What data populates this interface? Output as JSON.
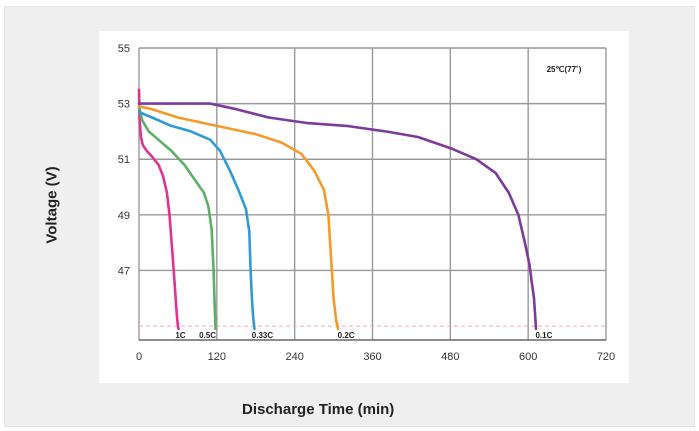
{
  "chart_data": {
    "type": "line",
    "title": "",
    "xlabel": "Discharge Time (min)",
    "ylabel": "Voltage (V)",
    "annotation": "25℃(77˚)",
    "xlim": [
      0,
      720
    ],
    "ylim": [
      44.5,
      55
    ],
    "x_ticks": [
      0,
      120,
      240,
      360,
      480,
      600,
      720
    ],
    "y_ticks": [
      47,
      49,
      51,
      53,
      55
    ],
    "grid": true,
    "cutoff_voltage": 45.0,
    "colors": {
      "grid": "#999999",
      "cutoff": "#f3a7b5",
      "1C": "#e0338f",
      "0.5C": "#5daf68",
      "0.33C": "#2f9ad6",
      "0.2C": "#f39a2a",
      "0.1C": "#7d3a99"
    },
    "series": [
      {
        "name": "1C",
        "x": [
          0,
          1,
          3,
          6,
          12,
          20,
          30,
          37,
          43,
          47,
          52,
          55,
          58,
          60,
          61
        ],
        "y": [
          53.5,
          52.4,
          51.8,
          51.5,
          51.3,
          51.1,
          50.8,
          50.4,
          49.8,
          49.0,
          47.5,
          46.5,
          45.5,
          45.0,
          44.9
        ]
      },
      {
        "name": "0.5C",
        "x": [
          0,
          5,
          15,
          30,
          50,
          70,
          85,
          100,
          107,
          112,
          115,
          117,
          118
        ],
        "y": [
          52.9,
          52.4,
          52.0,
          51.7,
          51.3,
          50.8,
          50.3,
          49.8,
          49.3,
          48.5,
          47.0,
          45.5,
          44.9
        ]
      },
      {
        "name": "0.33C",
        "x": [
          0,
          20,
          50,
          80,
          110,
          125,
          140,
          155,
          165,
          170,
          172,
          174,
          176,
          178
        ],
        "y": [
          52.7,
          52.5,
          52.2,
          52.0,
          51.7,
          51.3,
          50.6,
          49.8,
          49.2,
          48.4,
          47.0,
          46.0,
          45.3,
          44.9
        ]
      },
      {
        "name": "0.2C",
        "x": [
          0,
          20,
          60,
          120,
          180,
          220,
          250,
          270,
          285,
          292,
          296,
          300,
          304,
          307
        ],
        "y": [
          52.9,
          52.8,
          52.5,
          52.2,
          51.9,
          51.6,
          51.2,
          50.6,
          49.9,
          49.0,
          47.5,
          46.0,
          45.2,
          44.9
        ]
      },
      {
        "name": "0.1C",
        "x": [
          0,
          30,
          70,
          110,
          150,
          200,
          260,
          320,
          380,
          430,
          480,
          520,
          550,
          570,
          585,
          595,
          602,
          606,
          609,
          611,
          612
        ],
        "y": [
          53.0,
          53.0,
          53.0,
          53.0,
          52.8,
          52.5,
          52.3,
          52.2,
          52.0,
          51.8,
          51.4,
          51.0,
          50.5,
          49.8,
          49.0,
          48.0,
          47.2,
          46.5,
          46.0,
          45.3,
          44.9
        ]
      }
    ]
  }
}
